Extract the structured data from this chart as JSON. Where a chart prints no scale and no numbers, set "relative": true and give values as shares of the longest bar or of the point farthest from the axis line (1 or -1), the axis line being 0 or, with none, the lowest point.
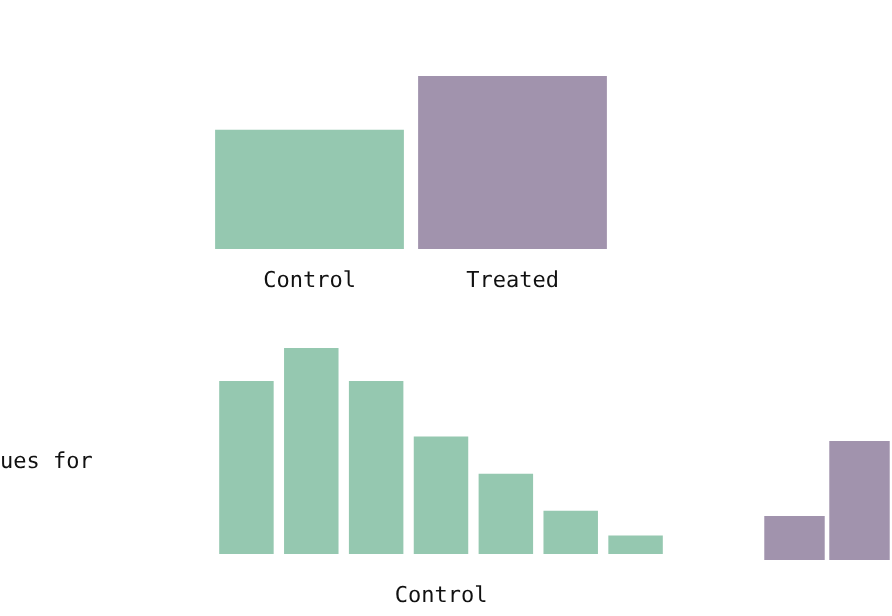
{
  "chart_data": [
    {
      "type": "bar",
      "relative": true,
      "categories": [
        "Control",
        "Treated"
      ],
      "values": [
        0.69,
        1
      ],
      "colors": [
        "#95c8b0",
        "#a193ad"
      ]
    },
    {
      "type": "bar",
      "relative": true,
      "xlabel": "Control",
      "annotations": [
        "ues for"
      ],
      "categories": [
        null,
        null,
        null,
        null,
        null,
        null,
        null
      ],
      "values": [
        0.84,
        1,
        0.84,
        0.57,
        0.39,
        0.21,
        0.09
      ],
      "color": "#95c8b0"
    },
    {
      "type": "bar",
      "relative": true,
      "categories": [
        null,
        null
      ],
      "values": [
        0.37,
        1
      ],
      "color": "#a193ad"
    }
  ]
}
